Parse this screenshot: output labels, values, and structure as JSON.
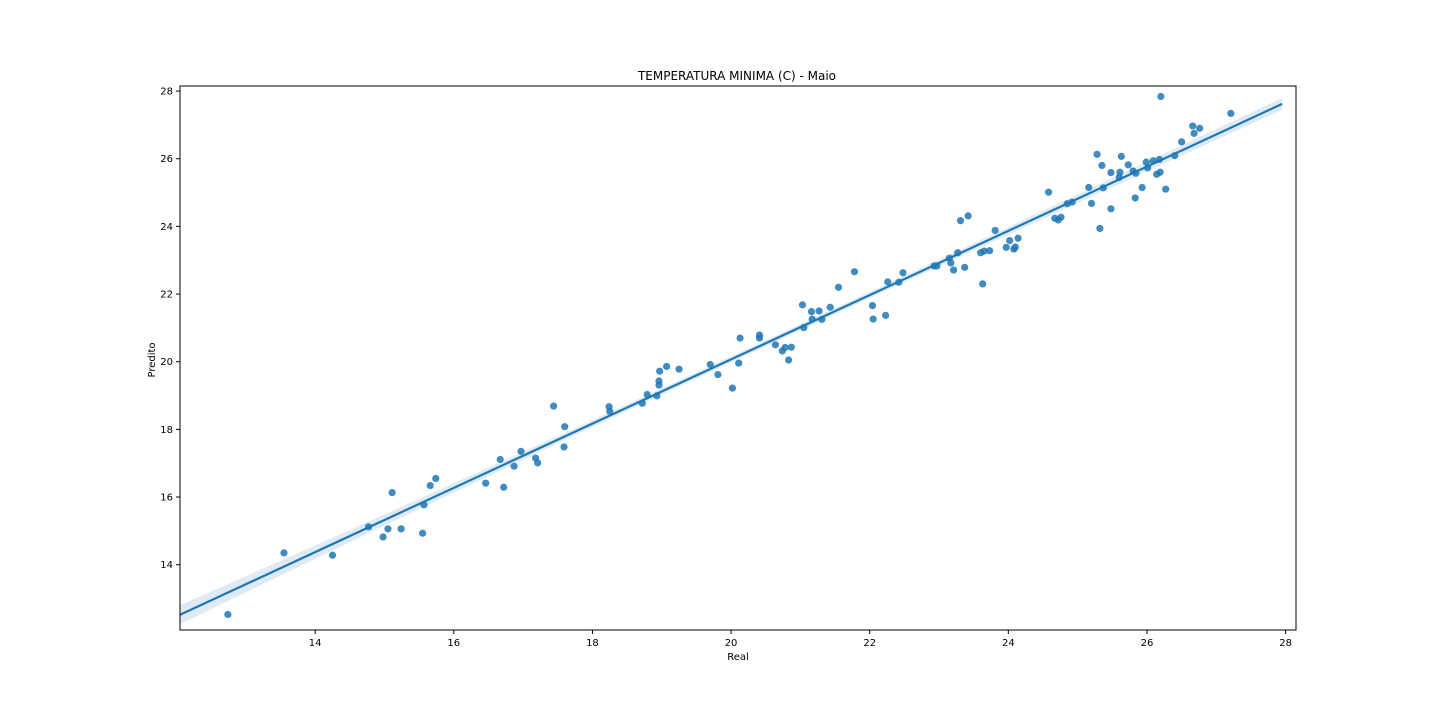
{
  "chart_data": {
    "type": "scatter",
    "title": "TEMPERATURA MINIMA (C) - Maio",
    "xlabel": "Real",
    "ylabel": "Predito",
    "xlim": [
      12.05,
      28.15
    ],
    "ylim": [
      12.07,
      28.15
    ],
    "xticks": [
      14,
      16,
      18,
      20,
      22,
      24,
      26,
      28
    ],
    "yticks": [
      14,
      16,
      18,
      20,
      22,
      24,
      26,
      28
    ],
    "grid": false,
    "colors": {
      "points": "#1f77b4",
      "line": "#1f77b4",
      "band": "#1f77b4"
    },
    "regression": {
      "x": [
        12.05,
        27.95
      ],
      "y": [
        12.52,
        27.62
      ],
      "ci_halfwidth": [
        0.28,
        0.09,
        0.18
      ]
    },
    "points": [
      [
        12.74,
        12.53
      ],
      [
        13.55,
        14.35
      ],
      [
        14.25,
        14.28
      ],
      [
        14.77,
        15.12
      ],
      [
        14.98,
        14.82
      ],
      [
        15.05,
        15.06
      ],
      [
        15.11,
        16.13
      ],
      [
        15.24,
        15.06
      ],
      [
        15.55,
        14.93
      ],
      [
        15.57,
        15.77
      ],
      [
        15.66,
        16.34
      ],
      [
        15.74,
        16.55
      ],
      [
        16.46,
        16.41
      ],
      [
        16.67,
        17.11
      ],
      [
        16.72,
        16.29
      ],
      [
        16.87,
        16.91
      ],
      [
        16.97,
        17.35
      ],
      [
        17.18,
        17.15
      ],
      [
        17.21,
        17.01
      ],
      [
        17.44,
        18.69
      ],
      [
        17.59,
        17.48
      ],
      [
        17.6,
        18.08
      ],
      [
        18.24,
        18.67
      ],
      [
        18.25,
        18.53
      ],
      [
        18.72,
        18.77
      ],
      [
        18.79,
        19.03
      ],
      [
        18.93,
        18.99
      ],
      [
        18.96,
        19.31
      ],
      [
        18.96,
        19.43
      ],
      [
        18.97,
        19.72
      ],
      [
        19.07,
        19.86
      ],
      [
        19.25,
        19.78
      ],
      [
        19.7,
        19.92
      ],
      [
        19.81,
        19.62
      ],
      [
        20.02,
        19.22
      ],
      [
        20.11,
        19.96
      ],
      [
        20.13,
        20.7
      ],
      [
        20.41,
        20.79
      ],
      [
        20.41,
        20.7
      ],
      [
        20.64,
        20.5
      ],
      [
        20.74,
        20.32
      ],
      [
        20.78,
        20.42
      ],
      [
        20.83,
        20.05
      ],
      [
        20.87,
        20.43
      ],
      [
        21.03,
        21.68
      ],
      [
        21.05,
        21.01
      ],
      [
        21.16,
        21.48
      ],
      [
        21.17,
        21.26
      ],
      [
        21.27,
        21.5
      ],
      [
        21.31,
        21.25
      ],
      [
        21.43,
        21.61
      ],
      [
        21.55,
        22.2
      ],
      [
        21.78,
        22.66
      ],
      [
        22.04,
        21.66
      ],
      [
        22.05,
        21.26
      ],
      [
        22.23,
        21.37
      ],
      [
        22.26,
        22.36
      ],
      [
        22.42,
        22.35
      ],
      [
        22.48,
        22.63
      ],
      [
        22.93,
        22.83
      ],
      [
        22.97,
        22.83
      ],
      [
        23.15,
        23.06
      ],
      [
        23.17,
        22.92
      ],
      [
        23.21,
        22.71
      ],
      [
        23.27,
        23.22
      ],
      [
        23.31,
        24.17
      ],
      [
        23.37,
        22.79
      ],
      [
        23.42,
        24.31
      ],
      [
        23.6,
        23.22
      ],
      [
        23.63,
        22.3
      ],
      [
        23.65,
        23.27
      ],
      [
        23.73,
        23.28
      ],
      [
        23.81,
        23.88
      ],
      [
        23.97,
        23.38
      ],
      [
        24.02,
        23.58
      ],
      [
        24.08,
        23.33
      ],
      [
        24.1,
        23.39
      ],
      [
        24.14,
        23.65
      ],
      [
        24.58,
        25.01
      ],
      [
        24.67,
        24.24
      ],
      [
        24.72,
        24.19
      ],
      [
        24.76,
        24.27
      ],
      [
        24.85,
        24.67
      ],
      [
        24.92,
        24.72
      ],
      [
        25.16,
        25.15
      ],
      [
        25.2,
        24.68
      ],
      [
        25.28,
        26.13
      ],
      [
        25.32,
        23.94
      ],
      [
        25.35,
        25.8
      ],
      [
        25.37,
        25.14
      ],
      [
        25.48,
        24.52
      ],
      [
        25.48,
        25.59
      ],
      [
        25.6,
        25.45
      ],
      [
        25.61,
        25.6
      ],
      [
        25.63,
        26.07
      ],
      [
        25.73,
        25.82
      ],
      [
        25.8,
        25.64
      ],
      [
        25.83,
        24.84
      ],
      [
        25.84,
        25.57
      ],
      [
        25.93,
        25.15
      ],
      [
        25.99,
        25.9
      ],
      [
        26.01,
        25.73
      ],
      [
        26.09,
        25.94
      ],
      [
        26.14,
        25.54
      ],
      [
        26.18,
        25.98
      ],
      [
        26.19,
        25.6
      ],
      [
        26.2,
        27.84
      ],
      [
        26.27,
        25.1
      ],
      [
        26.4,
        26.09
      ],
      [
        26.5,
        26.5
      ],
      [
        26.66,
        26.97
      ],
      [
        26.68,
        26.75
      ],
      [
        26.76,
        26.9
      ],
      [
        27.21,
        27.34
      ]
    ]
  }
}
